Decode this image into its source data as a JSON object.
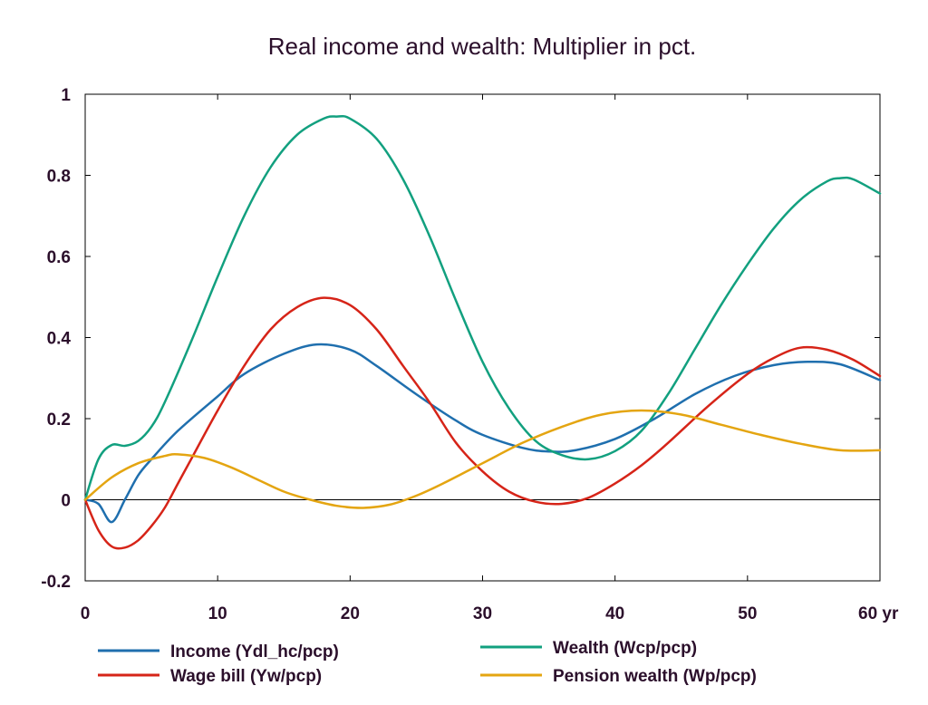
{
  "chart_data": {
    "type": "line",
    "title": "Real income and wealth: Multiplier in pct.",
    "xlabel": "",
    "ylabel": "",
    "xlim": [
      0,
      60
    ],
    "ylim": [
      -0.2,
      1
    ],
    "x_ticks": [
      0,
      10,
      20,
      30,
      40,
      50,
      60
    ],
    "x_tick_labels": [
      "0",
      "10",
      "20",
      "30",
      "40",
      "50",
      "60 yr"
    ],
    "y_ticks": [
      -0.2,
      0,
      0.2,
      0.4,
      0.6,
      0.8,
      1
    ],
    "y_tick_labels": [
      "-0.2",
      "0",
      "0.2",
      "0.4",
      "0.6",
      "0.8",
      "1"
    ],
    "grid": false,
    "legend_position": "bottom",
    "series": [
      {
        "name": "Income (Ydl_hc/pcp)",
        "color": "#1f6fae",
        "points": [
          [
            0,
            0
          ],
          [
            1,
            -0.01
          ],
          [
            2,
            -0.055
          ],
          [
            3,
            0
          ],
          [
            4,
            0.06
          ],
          [
            5,
            0.1
          ],
          [
            7,
            0.17
          ],
          [
            10,
            0.255
          ],
          [
            12,
            0.31
          ],
          [
            15,
            0.36
          ],
          [
            17.5,
            0.383
          ],
          [
            20,
            0.37
          ],
          [
            22,
            0.33
          ],
          [
            25,
            0.26
          ],
          [
            28,
            0.195
          ],
          [
            30,
            0.16
          ],
          [
            33,
            0.128
          ],
          [
            35,
            0.119
          ],
          [
            37,
            0.122
          ],
          [
            40,
            0.15
          ],
          [
            43,
            0.2
          ],
          [
            46,
            0.26
          ],
          [
            49,
            0.305
          ],
          [
            52,
            0.332
          ],
          [
            54.5,
            0.34
          ],
          [
            57,
            0.334
          ],
          [
            60,
            0.295
          ]
        ]
      },
      {
        "name": "Wage bill (Yw/pcp)",
        "color": "#d62418",
        "points": [
          [
            0,
            0
          ],
          [
            1,
            -0.075
          ],
          [
            2,
            -0.115
          ],
          [
            3,
            -0.118
          ],
          [
            4,
            -0.1
          ],
          [
            5,
            -0.065
          ],
          [
            6,
            -0.02
          ],
          [
            7,
            0.04
          ],
          [
            8,
            0.1
          ],
          [
            10,
            0.22
          ],
          [
            12,
            0.33
          ],
          [
            14,
            0.42
          ],
          [
            16,
            0.475
          ],
          [
            18,
            0.498
          ],
          [
            20,
            0.48
          ],
          [
            22,
            0.42
          ],
          [
            24,
            0.33
          ],
          [
            26,
            0.24
          ],
          [
            28,
            0.14
          ],
          [
            30,
            0.07
          ],
          [
            32,
            0.02
          ],
          [
            34,
            -0.005
          ],
          [
            36,
            -0.01
          ],
          [
            38,
            0.005
          ],
          [
            40,
            0.04
          ],
          [
            42,
            0.085
          ],
          [
            44,
            0.14
          ],
          [
            47,
            0.23
          ],
          [
            50,
            0.31
          ],
          [
            52,
            0.35
          ],
          [
            54,
            0.375
          ],
          [
            56,
            0.37
          ],
          [
            58,
            0.345
          ],
          [
            60,
            0.305
          ]
        ]
      },
      {
        "name": "Wealth (Wcp/pcp)",
        "color": "#12a07f",
        "points": [
          [
            0,
            0
          ],
          [
            1,
            0.1
          ],
          [
            2,
            0.135
          ],
          [
            3,
            0.133
          ],
          [
            4,
            0.145
          ],
          [
            5,
            0.18
          ],
          [
            6,
            0.24
          ],
          [
            8,
            0.39
          ],
          [
            10,
            0.55
          ],
          [
            12,
            0.7
          ],
          [
            14,
            0.82
          ],
          [
            16,
            0.9
          ],
          [
            18,
            0.94
          ],
          [
            19,
            0.945
          ],
          [
            20,
            0.94
          ],
          [
            22,
            0.89
          ],
          [
            24,
            0.79
          ],
          [
            26,
            0.65
          ],
          [
            28,
            0.49
          ],
          [
            30,
            0.34
          ],
          [
            32,
            0.225
          ],
          [
            34,
            0.145
          ],
          [
            36,
            0.11
          ],
          [
            38,
            0.1
          ],
          [
            40,
            0.12
          ],
          [
            42,
            0.17
          ],
          [
            44,
            0.26
          ],
          [
            46,
            0.37
          ],
          [
            48,
            0.48
          ],
          [
            50,
            0.58
          ],
          [
            52,
            0.67
          ],
          [
            54,
            0.74
          ],
          [
            56,
            0.785
          ],
          [
            57,
            0.793
          ],
          [
            58,
            0.79
          ],
          [
            60,
            0.755
          ]
        ]
      },
      {
        "name": "Pension wealth (Wp/pcp)",
        "color": "#e4a511",
        "points": [
          [
            0,
            0
          ],
          [
            2,
            0.055
          ],
          [
            4,
            0.09
          ],
          [
            6,
            0.108
          ],
          [
            7,
            0.112
          ],
          [
            9,
            0.103
          ],
          [
            11,
            0.08
          ],
          [
            13,
            0.05
          ],
          [
            15,
            0.02
          ],
          [
            17,
            0
          ],
          [
            19,
            -0.015
          ],
          [
            21,
            -0.02
          ],
          [
            23,
            -0.012
          ],
          [
            25,
            0.01
          ],
          [
            27,
            0.04
          ],
          [
            30,
            0.09
          ],
          [
            33,
            0.14
          ],
          [
            36,
            0.18
          ],
          [
            39,
            0.21
          ],
          [
            42,
            0.22
          ],
          [
            45,
            0.21
          ],
          [
            48,
            0.185
          ],
          [
            51,
            0.16
          ],
          [
            54,
            0.138
          ],
          [
            57,
            0.122
          ],
          [
            60,
            0.122
          ]
        ]
      }
    ]
  }
}
